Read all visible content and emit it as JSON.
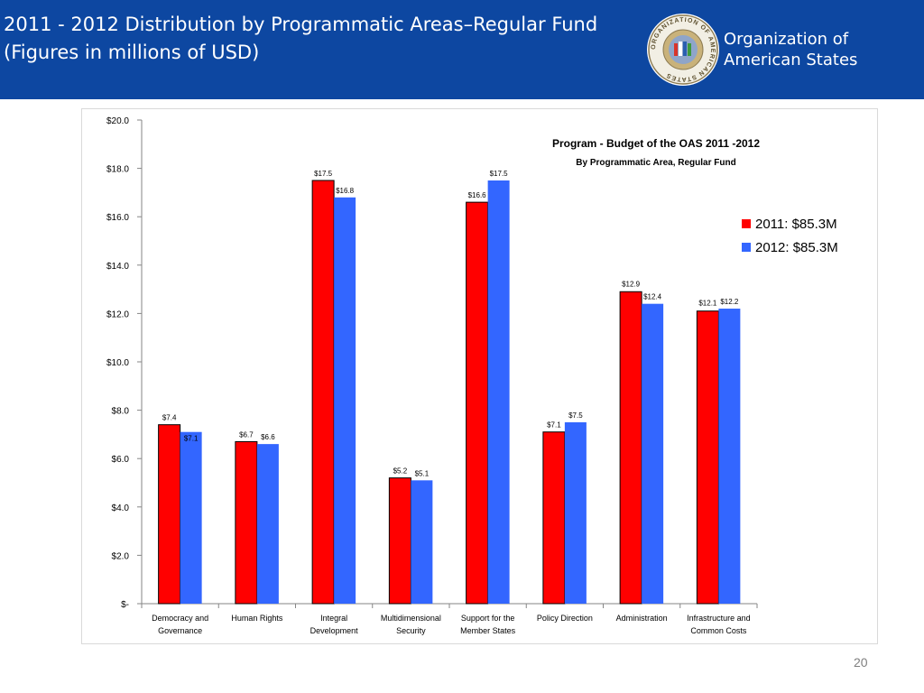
{
  "slide": {
    "title_line1": "2011 - 2012 Distribution by Programmatic Areas–Regular Fund",
    "title_line2": "(Figures in millions of USD)",
    "org_name_line1": "Organization of",
    "org_name_line2": "American States",
    "seal_text": "ORGANIZATION OF AMERICAN STATES",
    "page_number": "20"
  },
  "colors": {
    "header_bg": "#0d47a1",
    "series_2011": "#ff0000",
    "series_2012": "#3366ff"
  },
  "chart_data": {
    "type": "bar",
    "title": "Program - Budget of the OAS 2011 -2012",
    "subtitle": "By Programmatic Area, Regular Fund",
    "xlabel": "",
    "ylabel": "",
    "ylim": [
      0,
      20
    ],
    "yticks": [
      0,
      2,
      4,
      6,
      8,
      10,
      12,
      14,
      16,
      18,
      20
    ],
    "ytick_labels": [
      "$-",
      "$2.0",
      "$4.0",
      "$6.0",
      "$8.0",
      "$10.0",
      "$12.0",
      "$14.0",
      "$16.0",
      "$18.0",
      "$20.0"
    ],
    "grid": false,
    "legend_position": "right",
    "categories": [
      [
        "Democracy and",
        "Governance"
      ],
      [
        "Human Rights"
      ],
      [
        "Integral",
        "Development"
      ],
      [
        "Multidimensional",
        "Security"
      ],
      [
        "Support for the",
        "Member States"
      ],
      [
        "Policy Direction"
      ],
      [
        "Administration"
      ],
      [
        "Infrastructure and",
        "Common Costs"
      ]
    ],
    "series": [
      {
        "name": "2011: $85.3M",
        "values": [
          7.4,
          6.7,
          17.5,
          5.2,
          16.6,
          7.1,
          12.9,
          12.1
        ],
        "labels": [
          "$7.4",
          "$6.7",
          "$17.5",
          "$5.2",
          "$16.6",
          "$7.1",
          "$12.9",
          "$12.1"
        ]
      },
      {
        "name": "2012: $85.3M",
        "values": [
          7.1,
          6.6,
          16.8,
          5.1,
          17.5,
          7.5,
          12.4,
          12.2
        ],
        "labels": [
          "$7.1",
          "$6.6",
          "$16.8",
          "$5.1",
          "$17.5",
          "$7.5",
          "$12.4",
          "$12.2"
        ]
      }
    ]
  }
}
